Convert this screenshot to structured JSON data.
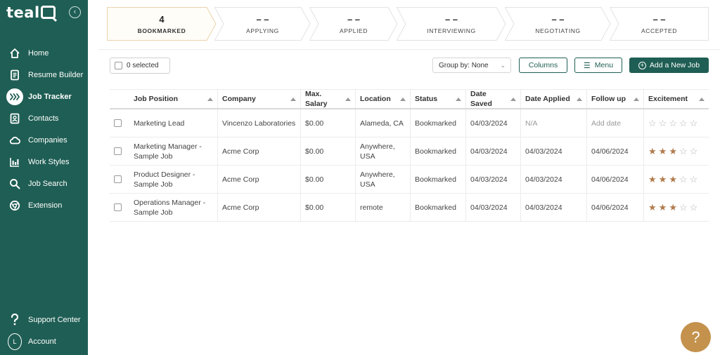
{
  "sidebar": {
    "logo": "teal",
    "items": [
      {
        "label": "Home",
        "icon": "home-icon"
      },
      {
        "label": "Resume Builder",
        "icon": "resume-icon"
      },
      {
        "label": "Job Tracker",
        "icon": "job-tracker-icon",
        "active": true
      },
      {
        "label": "Contacts",
        "icon": "contacts-icon"
      },
      {
        "label": "Companies",
        "icon": "companies-icon"
      },
      {
        "label": "Work Styles",
        "icon": "work-styles-icon"
      },
      {
        "label": "Job Search",
        "icon": "search-icon"
      },
      {
        "label": "Extension",
        "icon": "extension-icon"
      }
    ],
    "bottom": [
      {
        "label": "Support Center",
        "icon": "question-icon"
      },
      {
        "label": "Account",
        "icon": "account-avatar",
        "initial": "L"
      }
    ]
  },
  "pipeline": [
    {
      "count": "4",
      "label": "BOOKMARKED",
      "active": true
    },
    {
      "count": "– –",
      "label": "APPLYING"
    },
    {
      "count": "– –",
      "label": "APPLIED"
    },
    {
      "count": "– –",
      "label": "INTERVIEWING"
    },
    {
      "count": "– –",
      "label": "NEGOTIATING"
    },
    {
      "count": "– –",
      "label": "ACCEPTED"
    }
  ],
  "toolbar": {
    "selected": "0 selected",
    "group_by": "Group by: None",
    "columns": "Columns",
    "menu": "Menu",
    "add": "Add a New Job"
  },
  "table": {
    "headers": [
      "Job Position",
      "Company",
      "Max. Salary",
      "Location",
      "Status",
      "Date Saved",
      "Date Applied",
      "Follow up",
      "Excitement"
    ],
    "rows": [
      {
        "position": "Marketing Lead",
        "company": "Vincenzo Laboratories",
        "salary": "$0.00",
        "location": "Alameda, CA",
        "status": "Bookmarked",
        "saved": "04/03/2024",
        "applied": "N/A",
        "followup": "Add date",
        "excitement": 0
      },
      {
        "position": "Marketing Manager - Sample Job",
        "company": "Acme Corp",
        "salary": "$0.00",
        "location": "Anywhere, USA",
        "status": "Bookmarked",
        "saved": "04/03/2024",
        "applied": "04/03/2024",
        "followup": "04/06/2024",
        "excitement": 3
      },
      {
        "position": "Product Designer - Sample Job",
        "company": "Acme Corp",
        "salary": "$0.00",
        "location": "Anywhere, USA",
        "status": "Bookmarked",
        "saved": "04/03/2024",
        "applied": "04/03/2024",
        "followup": "04/06/2024",
        "excitement": 3
      },
      {
        "position": "Operations Manager - Sample Job",
        "company": "Acme Corp",
        "salary": "$0.00",
        "location": "remote",
        "status": "Bookmarked",
        "saved": "04/03/2024",
        "applied": "04/03/2024",
        "followup": "04/06/2024",
        "excitement": 3
      }
    ]
  },
  "help": "?",
  "colors": {
    "brand": "#1f5e54",
    "accent": "#c4924d",
    "star": "#b07a4c"
  }
}
